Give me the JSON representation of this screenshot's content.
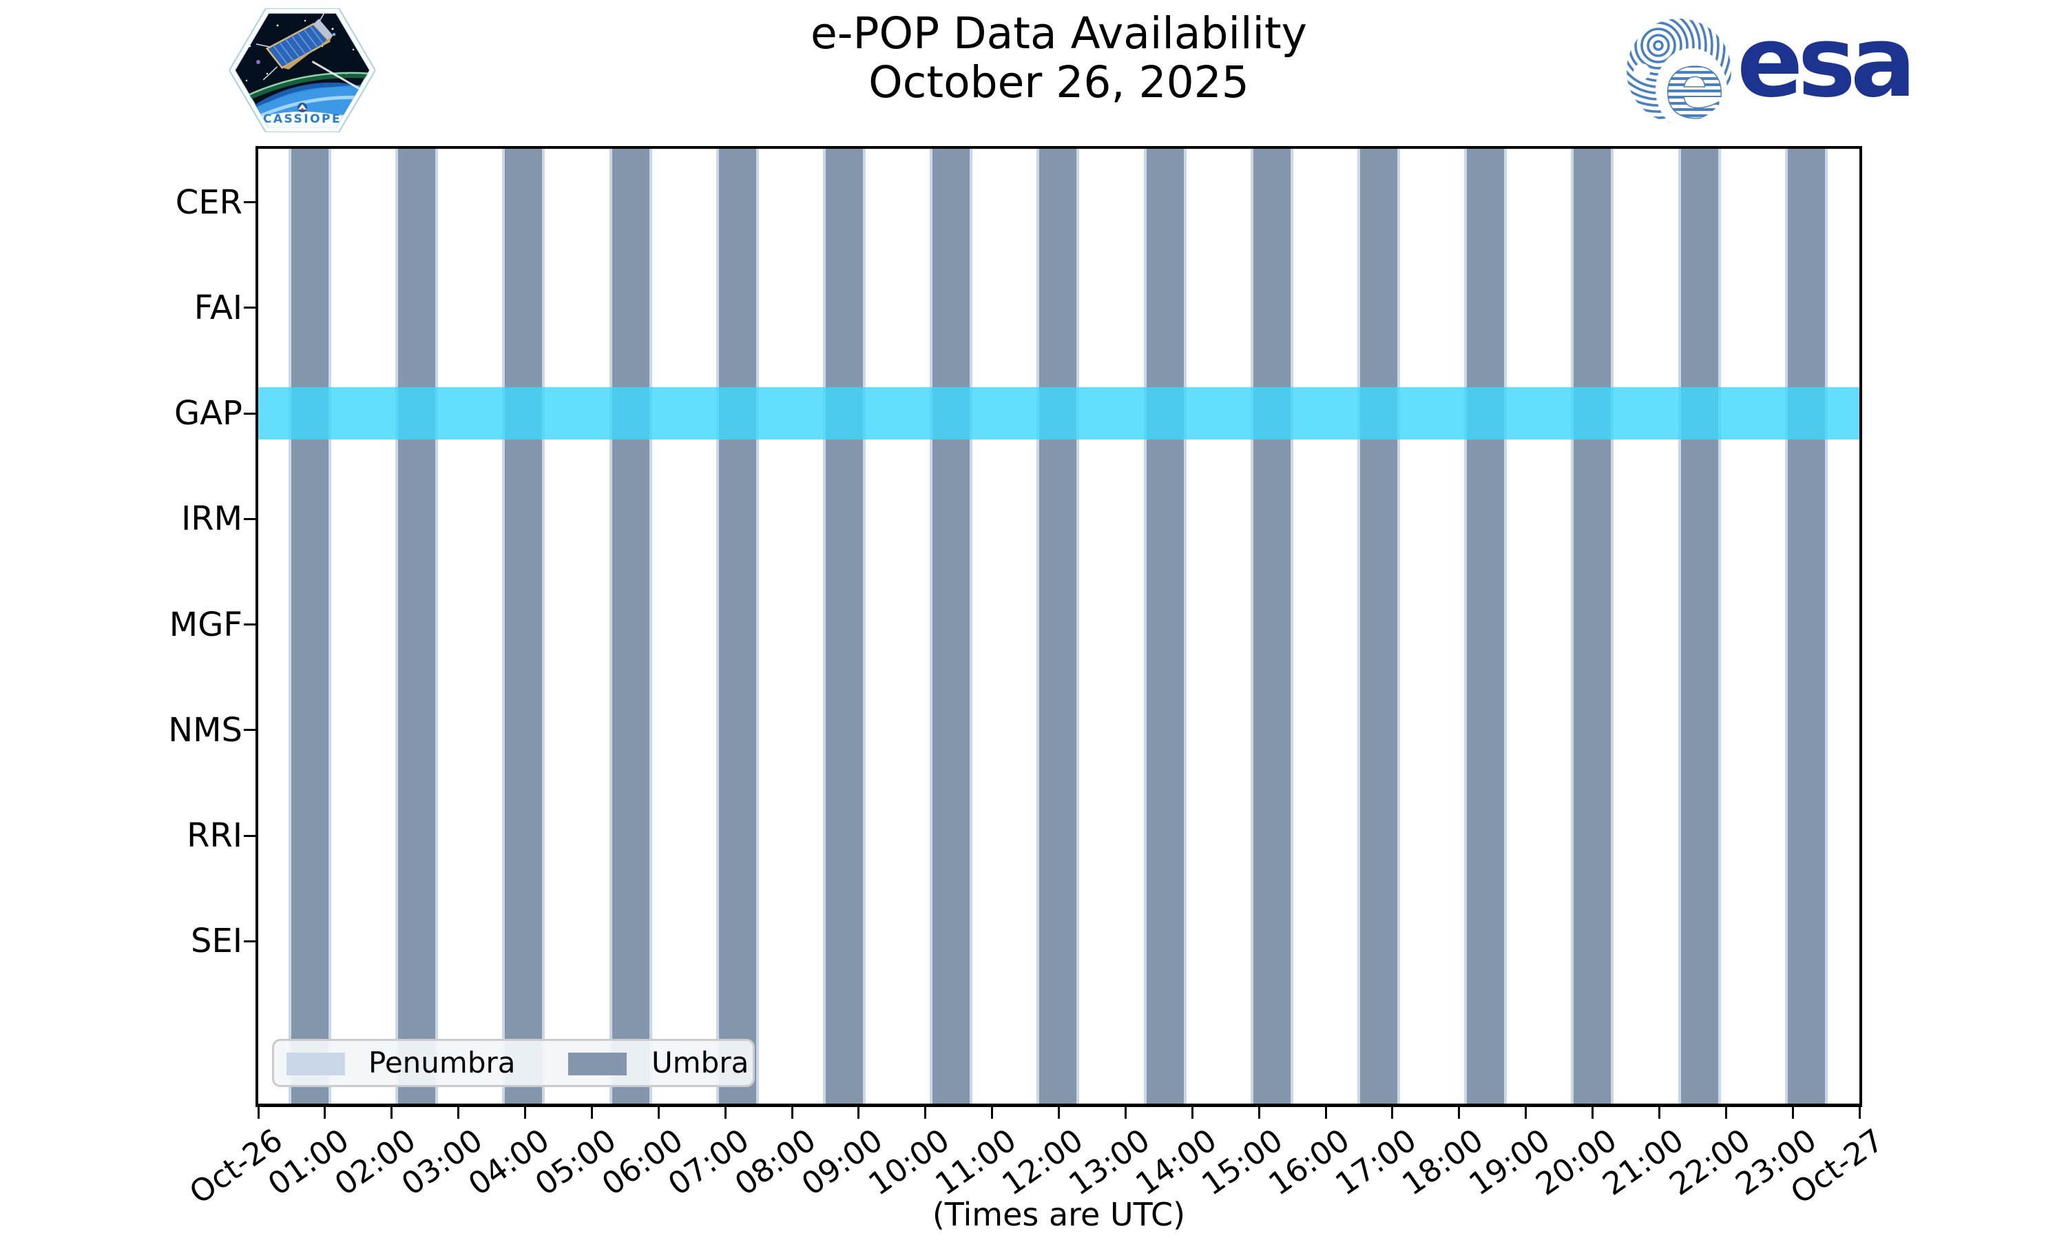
{
  "header": {
    "title_line1": "e-POP Data Availability",
    "title_line2": "October 26, 2025"
  },
  "logos": {
    "cassiope_patch_label": "CASSIOPE",
    "esa_wordmark": "esa"
  },
  "axes": {
    "x_label": "(Times are UTC)",
    "x_ticks": [
      "Oct-26",
      "01:00",
      "02:00",
      "03:00",
      "04:00",
      "05:00",
      "06:00",
      "07:00",
      "08:00",
      "09:00",
      "10:00",
      "11:00",
      "12:00",
      "13:00",
      "14:00",
      "15:00",
      "16:00",
      "17:00",
      "18:00",
      "19:00",
      "20:00",
      "21:00",
      "22:00",
      "23:00",
      "Oct-27"
    ],
    "y_ticks": [
      "CER",
      "FAI",
      "GAP",
      "IRM",
      "MGF",
      "NMS",
      "RRI",
      "SEI"
    ]
  },
  "legend": {
    "items": [
      {
        "label": "Penumbra",
        "color": "#c9d7e8"
      },
      {
        "label": "Umbra",
        "color": "#8496ab"
      }
    ]
  },
  "colors": {
    "umbra": "#8496ab",
    "penumbra": "#c9d7e8",
    "gap_band": "rgba(65,215,251,0.82)",
    "spine": "#000000",
    "esa_stripe_blue": "#4a7fc0",
    "esa_navy": "#1c3490",
    "cassiope_blue": "#2f7cc3"
  },
  "chart_data": {
    "type": "availability-timeline",
    "title": "e-POP Data Availability",
    "subtitle": "October 26, 2025",
    "x_axis": {
      "label": "(Times are UTC)",
      "start": "Oct-26 00:00 UTC",
      "end": "Oct-27 00:00 UTC",
      "hours_range": [
        0,
        24
      ],
      "tick_interval_hours": 1
    },
    "instruments": [
      "CER",
      "FAI",
      "GAP",
      "IRM",
      "MGF",
      "NMS",
      "RRI",
      "SEI"
    ],
    "availability": [
      {
        "instrument": "GAP",
        "start_hour": 0,
        "end_hour": 24,
        "style": "cyan-band"
      }
    ],
    "umbra_intervals_hours": [
      [
        0.5,
        1.05
      ],
      [
        2.1,
        2.65
      ],
      [
        3.7,
        4.25
      ],
      [
        5.31,
        5.86
      ],
      [
        6.91,
        7.46
      ],
      [
        8.51,
        9.06
      ],
      [
        10.11,
        10.66
      ],
      [
        11.71,
        12.26
      ],
      [
        13.32,
        13.87
      ],
      [
        14.92,
        15.47
      ],
      [
        16.52,
        17.07
      ],
      [
        18.12,
        18.67
      ],
      [
        19.72,
        20.27
      ],
      [
        21.33,
        21.88
      ],
      [
        22.93,
        23.48
      ]
    ],
    "penumbra_margin_hours": 0.045,
    "legend_entries": [
      "Penumbra",
      "Umbra"
    ],
    "grid": false,
    "legend_position": "lower-left"
  }
}
